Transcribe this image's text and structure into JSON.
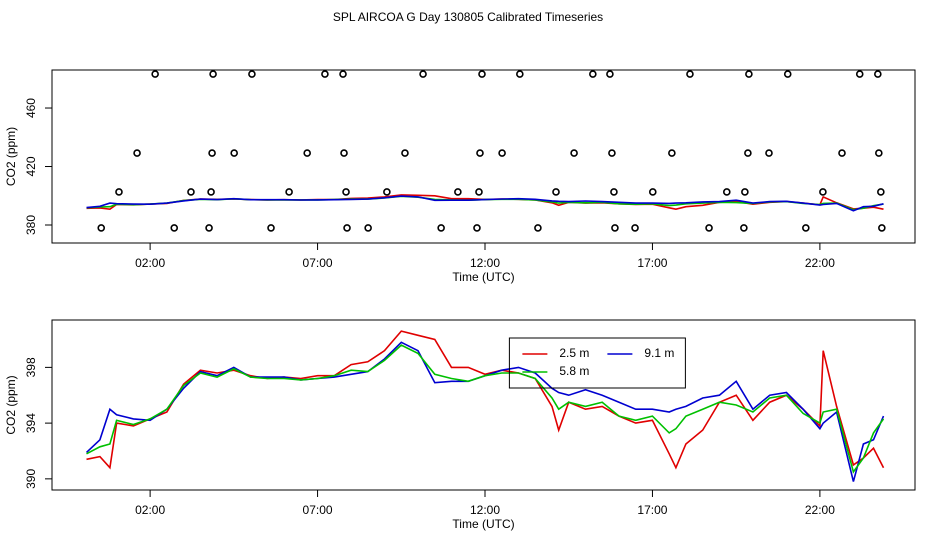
{
  "title": "SPL AIRCOA G  Day 130805  Calibrated Timeseries",
  "chart_data": [
    {
      "type": "line",
      "xlabel": "Time (UTC)",
      "ylabel": "CO2 (ppm)",
      "xlim": [
        -0.93,
        24.84
      ],
      "ylim": [
        367.7,
        486
      ],
      "xticks": [
        {
          "value": 2,
          "label": "02:00"
        },
        {
          "value": 7,
          "label": "07:00"
        },
        {
          "value": 12,
          "label": "12:00"
        },
        {
          "value": 17,
          "label": "17:00"
        },
        {
          "value": 22,
          "label": "22:00"
        }
      ],
      "yticks": [
        380,
        420,
        460
      ],
      "x": [
        0.1,
        0.5,
        0.8,
        1,
        1.5,
        2,
        2.5,
        3,
        3.5,
        4,
        4.5,
        5,
        5.5,
        6,
        6.5,
        7,
        7.5,
        8,
        8.5,
        9,
        9.5,
        10,
        10.5,
        11,
        11.5,
        12,
        12.5,
        13,
        13.5,
        14,
        14.2,
        14.5,
        15,
        15.5,
        16,
        16.5,
        17,
        17.5,
        17.7,
        18,
        18.5,
        19,
        19.5,
        20,
        20.5,
        21,
        21.5,
        22,
        22.1,
        22.5,
        23,
        23.3,
        23.6,
        23.9
      ],
      "series": [
        {
          "color": "#e00000",
          "values": [
            391.4,
            391.6,
            390.8,
            394.0,
            393.8,
            394.3,
            394.8,
            396.8,
            397.8,
            397.6,
            397.8,
            397.4,
            397.2,
            397.3,
            397.2,
            397.4,
            397.4,
            398.2,
            398.4,
            399.2,
            400.6,
            400.3,
            400.0,
            398.0,
            398.0,
            397.5,
            397.8,
            397.6,
            397.2,
            395.2,
            393.5,
            395.5,
            395.0,
            395.2,
            394.5,
            394.0,
            394.2,
            391.8,
            390.8,
            392.5,
            393.5,
            395.5,
            396.0,
            394.2,
            395.5,
            396.0,
            395.0,
            393.8,
            399.2,
            395.2,
            391.0,
            391.5,
            392.2,
            390.8
          ]
        },
        {
          "color": "#00c000",
          "values": [
            391.8,
            392.3,
            392.5,
            394.2,
            393.9,
            394.3,
            395.0,
            396.7,
            397.6,
            397.3,
            397.9,
            397.3,
            397.2,
            397.2,
            397.1,
            397.2,
            397.4,
            397.8,
            397.7,
            398.5,
            399.6,
            399.0,
            397.5,
            397.2,
            397.0,
            397.4,
            397.6,
            397.6,
            397.2,
            395.8,
            395.0,
            395.5,
            395.2,
            395.5,
            394.5,
            394.2,
            394.5,
            393.3,
            393.6,
            394.5,
            395.0,
            395.5,
            395.3,
            394.8,
            395.8,
            396.0,
            394.7,
            394.0,
            394.8,
            395.0,
            390.5,
            391.5,
            393.3,
            394.3
          ]
        },
        {
          "color": "#0000d0",
          "values": [
            391.9,
            392.8,
            395.0,
            394.6,
            394.3,
            394.2,
            395.0,
            396.5,
            397.7,
            397.4,
            398.0,
            397.3,
            397.3,
            397.3,
            397.1,
            397.2,
            397.3,
            397.5,
            397.7,
            398.6,
            399.8,
            399.2,
            396.9,
            397.0,
            397.0,
            397.4,
            397.8,
            398.0,
            397.6,
            396.5,
            396.2,
            396.0,
            396.4,
            396.0,
            395.5,
            395.0,
            395.0,
            394.8,
            395.0,
            395.2,
            395.8,
            396.0,
            397.0,
            395.0,
            396.0,
            396.2,
            395.0,
            393.6,
            394.0,
            394.8,
            389.8,
            392.5,
            392.8,
            394.5
          ]
        },
        {
          "color": "#000000",
          "marker": "circle",
          "x": [
            2.15,
            3.88,
            5.04,
            7.22,
            7.76,
            10.15,
            11.91,
            13.04,
            15.22,
            15.73,
            18.12,
            19.88,
            21.04,
            23.19,
            23.73,
            1.61,
            3.85,
            4.51,
            6.69,
            7.79,
            9.61,
            11.85,
            12.51,
            14.66,
            15.79,
            17.58,
            19.85,
            20.48,
            22.66,
            23.76,
            1.07,
            3.22,
            3.82,
            6.15,
            7.85,
            9.07,
            11.19,
            11.82,
            14.12,
            15.85,
            17.01,
            19.22,
            19.76,
            22.09,
            23.82,
            0.54,
            2.72,
            3.76,
            5.61,
            7.88,
            8.51,
            10.69,
            11.76,
            13.58,
            15.88,
            16.48,
            18.69,
            19.73,
            21.58,
            23.85
          ],
          "values": [
            483.2,
            483.2,
            483.2,
            483.2,
            483.2,
            483.2,
            483.2,
            483.2,
            483.2,
            483.2,
            483.2,
            483.2,
            483.2,
            483.2,
            483.2,
            429.2,
            429.2,
            429.2,
            429.2,
            429.2,
            429.2,
            429.2,
            429.2,
            429.2,
            429.2,
            429.2,
            429.2,
            429.2,
            429.2,
            429.2,
            402.6,
            402.6,
            402.6,
            402.6,
            402.6,
            402.6,
            402.6,
            402.6,
            402.6,
            402.6,
            402.6,
            402.6,
            402.6,
            402.6,
            402.6,
            378,
            378,
            378,
            378,
            378,
            378,
            378,
            378,
            378,
            378,
            378,
            378,
            378,
            378,
            378
          ]
        }
      ]
    },
    {
      "type": "line",
      "xlabel": "Time (UTC)",
      "ylabel": "CO2 (ppm)",
      "xlim": [
        -0.93,
        24.84
      ],
      "ylim": [
        389.2,
        401.4
      ],
      "xticks": [
        {
          "value": 2,
          "label": "02:00"
        },
        {
          "value": 7,
          "label": "07:00"
        },
        {
          "value": 12,
          "label": "12:00"
        },
        {
          "value": 17,
          "label": "17:00"
        },
        {
          "value": 22,
          "label": "22:00"
        }
      ],
      "yticks": [
        390,
        394,
        398
      ],
      "legend": "top-center",
      "x": [
        0.1,
        0.5,
        0.8,
        1,
        1.5,
        2,
        2.5,
        3,
        3.5,
        4,
        4.5,
        5,
        5.5,
        6,
        6.5,
        7,
        7.5,
        8,
        8.5,
        9,
        9.5,
        10,
        10.5,
        11,
        11.5,
        12,
        12.5,
        13,
        13.5,
        14,
        14.2,
        14.5,
        15,
        15.5,
        16,
        16.5,
        17,
        17.5,
        17.7,
        18,
        18.5,
        19,
        19.5,
        20,
        20.5,
        21,
        21.5,
        22,
        22.1,
        22.5,
        23,
        23.3,
        23.6,
        23.9
      ],
      "series": [
        {
          "name": "2.5 m",
          "color": "#e00000",
          "values": [
            391.4,
            391.6,
            390.8,
            394.0,
            393.8,
            394.3,
            394.8,
            396.8,
            397.8,
            397.6,
            397.8,
            397.4,
            397.2,
            397.3,
            397.2,
            397.4,
            397.4,
            398.2,
            398.4,
            399.2,
            400.6,
            400.3,
            400.0,
            398.0,
            398.0,
            397.5,
            397.8,
            397.6,
            397.2,
            395.2,
            393.5,
            395.5,
            395.0,
            395.2,
            394.5,
            394.0,
            394.2,
            391.8,
            390.8,
            392.5,
            393.5,
            395.5,
            396.0,
            394.2,
            395.5,
            396.0,
            395.0,
            393.8,
            399.2,
            395.2,
            391.0,
            391.5,
            392.2,
            390.8
          ]
        },
        {
          "name": "9.1 m",
          "color": "#0000d0",
          "values": [
            391.9,
            392.8,
            395.0,
            394.6,
            394.3,
            394.2,
            395.0,
            396.5,
            397.7,
            397.4,
            398.0,
            397.3,
            397.3,
            397.3,
            397.1,
            397.2,
            397.3,
            397.5,
            397.7,
            398.6,
            399.8,
            399.2,
            396.9,
            397.0,
            397.0,
            397.4,
            397.8,
            398.0,
            397.6,
            396.5,
            396.2,
            396.0,
            396.4,
            396.0,
            395.5,
            395.0,
            395.0,
            394.8,
            395.0,
            395.2,
            395.8,
            396.0,
            397.0,
            395.0,
            396.0,
            396.2,
            395.0,
            393.6,
            394.0,
            394.8,
            389.8,
            392.5,
            392.8,
            394.5
          ]
        },
        {
          "name": "5.8 m",
          "color": "#00c000",
          "values": [
            391.8,
            392.3,
            392.5,
            394.2,
            393.9,
            394.3,
            395.0,
            396.7,
            397.6,
            397.3,
            397.9,
            397.3,
            397.2,
            397.2,
            397.1,
            397.2,
            397.4,
            397.8,
            397.7,
            398.5,
            399.6,
            399.0,
            397.5,
            397.2,
            397.0,
            397.4,
            397.6,
            397.6,
            397.2,
            395.8,
            395.0,
            395.5,
            395.2,
            395.5,
            394.5,
            394.2,
            394.5,
            393.3,
            393.6,
            394.5,
            395.0,
            395.5,
            395.3,
            394.8,
            395.8,
            396.0,
            394.7,
            394.0,
            394.8,
            395.0,
            390.5,
            391.5,
            393.3,
            394.3
          ]
        }
      ]
    }
  ]
}
